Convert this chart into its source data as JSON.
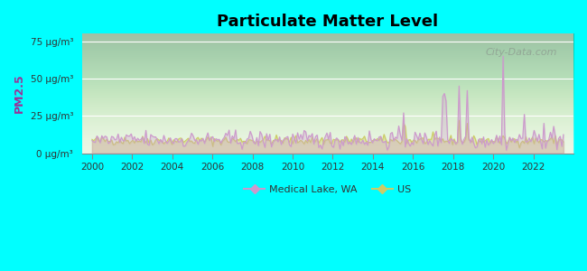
{
  "title": "Particulate Matter Level",
  "ylabel": "PM2.5",
  "background_color": "#00ffff",
  "plot_bg_top": "#e8f5e9",
  "plot_bg_bottom": "#f0fce8",
  "ylim": [
    0,
    80
  ],
  "yticks": [
    0,
    25,
    50,
    75
  ],
  "ytick_labels": [
    "0 μg/m³",
    "25 μg/m³",
    "50 μg/m³",
    "75 μg/m³"
  ],
  "xlim": [
    1999.5,
    2024.0
  ],
  "xticks": [
    2000,
    2002,
    2004,
    2006,
    2008,
    2010,
    2012,
    2014,
    2016,
    2018,
    2020,
    2022
  ],
  "medical_lake_color": "#cc99cc",
  "us_color": "#cccc66",
  "watermark": "City-Data.com",
  "legend_medical_lake": "Medical Lake, WA",
  "legend_us": "US"
}
